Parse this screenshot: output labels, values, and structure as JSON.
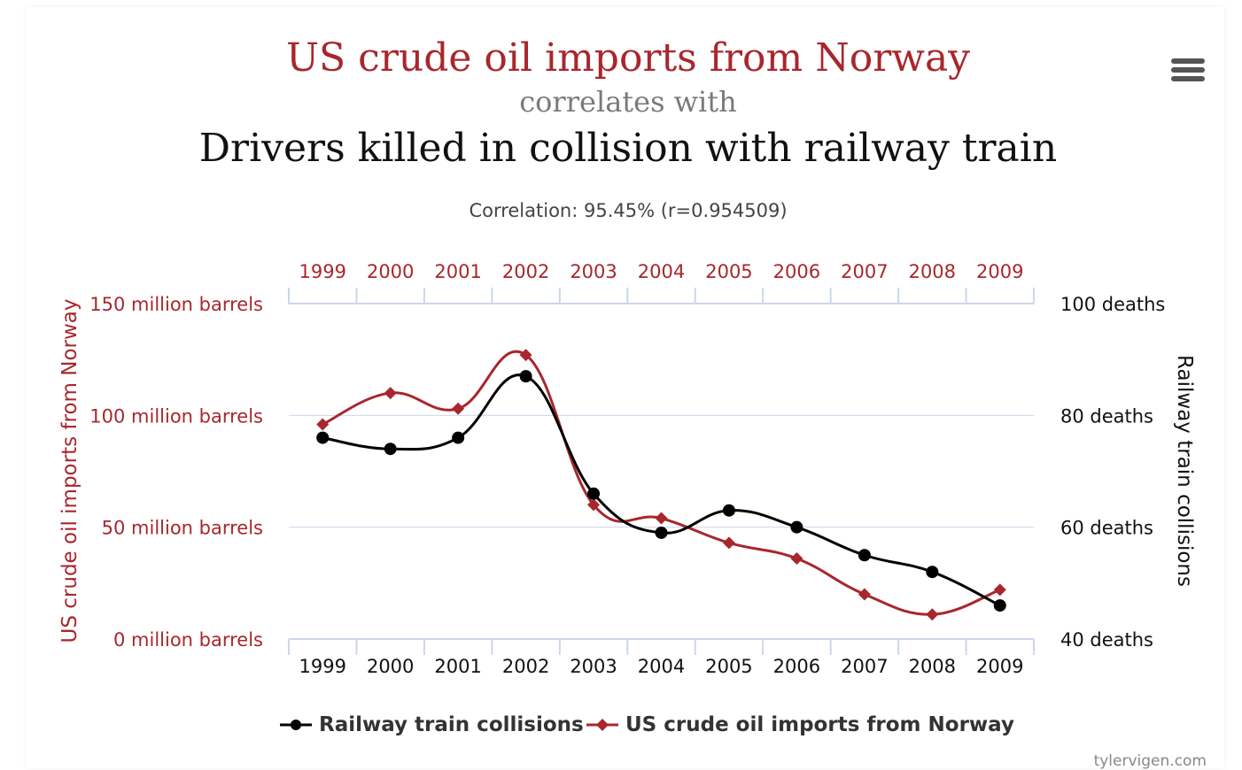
{
  "header": {
    "title_primary": "US crude oil imports from Norway",
    "title_connector": "correlates with",
    "title_secondary": "Drivers killed in collision with railway train",
    "correlation_text": "Correlation: 95.45% (r=0.954509)"
  },
  "colors": {
    "primary": "#a8272d",
    "secondary": "#000000",
    "grid": "#ccd6eb"
  },
  "menu": {
    "icon": "hamburger-menu-icon"
  },
  "watermark": "tylervigen.com",
  "chart_data": {
    "type": "line",
    "x": [
      "1999",
      "2000",
      "2001",
      "2002",
      "2003",
      "2004",
      "2005",
      "2006",
      "2007",
      "2008",
      "2009"
    ],
    "left_axis": {
      "title": "US crude oil imports from Norway",
      "range": [
        0,
        150
      ],
      "ticks": [
        0,
        50,
        100,
        150
      ],
      "tick_labels": [
        "0 million barrels",
        "50 million barrels",
        "100 million barrels",
        "150 million barrels"
      ]
    },
    "right_axis": {
      "title": "Railway train collisions",
      "range": [
        40,
        100
      ],
      "ticks": [
        40,
        60,
        80,
        100
      ],
      "tick_labels": [
        "40 deaths",
        "60 deaths",
        "80 deaths",
        "100 deaths"
      ]
    },
    "series": [
      {
        "name": "Railway train collisions",
        "axis": "right",
        "marker": "circle",
        "color": "#000000",
        "values": [
          76,
          74,
          76,
          87,
          66,
          59,
          63,
          60,
          55,
          52,
          46
        ]
      },
      {
        "name": "US crude oil imports from Norway",
        "axis": "left",
        "marker": "diamond",
        "color": "#a8272d",
        "values": [
          96,
          110,
          103,
          127,
          60,
          54,
          43,
          36,
          20,
          11,
          22
        ]
      }
    ],
    "legend": [
      "Railway train collisions",
      "US crude oil imports from Norway"
    ],
    "grid": true
  }
}
